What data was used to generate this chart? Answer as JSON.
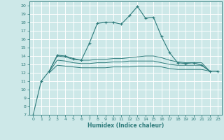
{
  "xlabel": "Humidex (Indice chaleur)",
  "ylabel": "",
  "background_color": "#cde8e8",
  "grid_color": "#ffffff",
  "line_color": "#2e7b7b",
  "xlim": [
    -0.5,
    23.5
  ],
  "ylim": [
    7,
    20.5
  ],
  "yticks": [
    7,
    8,
    9,
    10,
    11,
    12,
    13,
    14,
    15,
    16,
    17,
    18,
    19,
    20
  ],
  "xticks": [
    0,
    1,
    2,
    3,
    4,
    5,
    6,
    7,
    8,
    9,
    10,
    11,
    12,
    13,
    14,
    15,
    16,
    17,
    18,
    19,
    20,
    21,
    22,
    23
  ],
  "series": [
    {
      "x": [
        0,
        1,
        2,
        3,
        4,
        5,
        6,
        7,
        8,
        9,
        10,
        11,
        12,
        13,
        14,
        15,
        16,
        17,
        18,
        19,
        20,
        21,
        22,
        23
      ],
      "y": [
        7.0,
        11.0,
        12.2,
        14.1,
        14.0,
        13.7,
        13.5,
        15.5,
        17.9,
        18.0,
        18.0,
        17.8,
        18.8,
        19.9,
        18.5,
        18.6,
        16.3,
        14.4,
        13.2,
        13.1,
        13.2,
        12.9,
        12.2,
        12.2
      ],
      "marker": true
    },
    {
      "x": [
        2,
        3,
        4,
        5,
        6,
        7,
        8,
        9,
        10,
        11,
        12,
        13,
        14,
        15,
        16,
        17,
        18,
        19,
        20,
        21,
        22,
        23
      ],
      "y": [
        12.2,
        14.0,
        13.9,
        13.6,
        13.5,
        13.5,
        13.6,
        13.6,
        13.7,
        13.7,
        13.8,
        13.9,
        14.0,
        14.0,
        13.8,
        13.5,
        13.3,
        13.2,
        13.2,
        13.2,
        12.2,
        12.2
      ],
      "marker": false
    },
    {
      "x": [
        2,
        3,
        4,
        5,
        6,
        7,
        8,
        9,
        10,
        11,
        12,
        13,
        14,
        15,
        16,
        17,
        18,
        19,
        20,
        21,
        22,
        23
      ],
      "y": [
        12.1,
        13.5,
        13.4,
        13.2,
        13.1,
        13.1,
        13.2,
        13.2,
        13.3,
        13.3,
        13.4,
        13.4,
        13.4,
        13.4,
        13.2,
        13.0,
        12.9,
        12.9,
        12.9,
        12.9,
        12.2,
        12.2
      ],
      "marker": false
    },
    {
      "x": [
        2,
        3,
        4,
        5,
        6,
        7,
        8,
        9,
        10,
        11,
        12,
        13,
        14,
        15,
        16,
        17,
        18,
        19,
        20,
        21,
        22,
        23
      ],
      "y": [
        12.0,
        12.9,
        12.8,
        12.7,
        12.6,
        12.6,
        12.6,
        12.6,
        12.7,
        12.7,
        12.7,
        12.8,
        12.8,
        12.8,
        12.7,
        12.5,
        12.4,
        12.4,
        12.4,
        12.4,
        12.2,
        12.2
      ],
      "marker": false
    }
  ]
}
